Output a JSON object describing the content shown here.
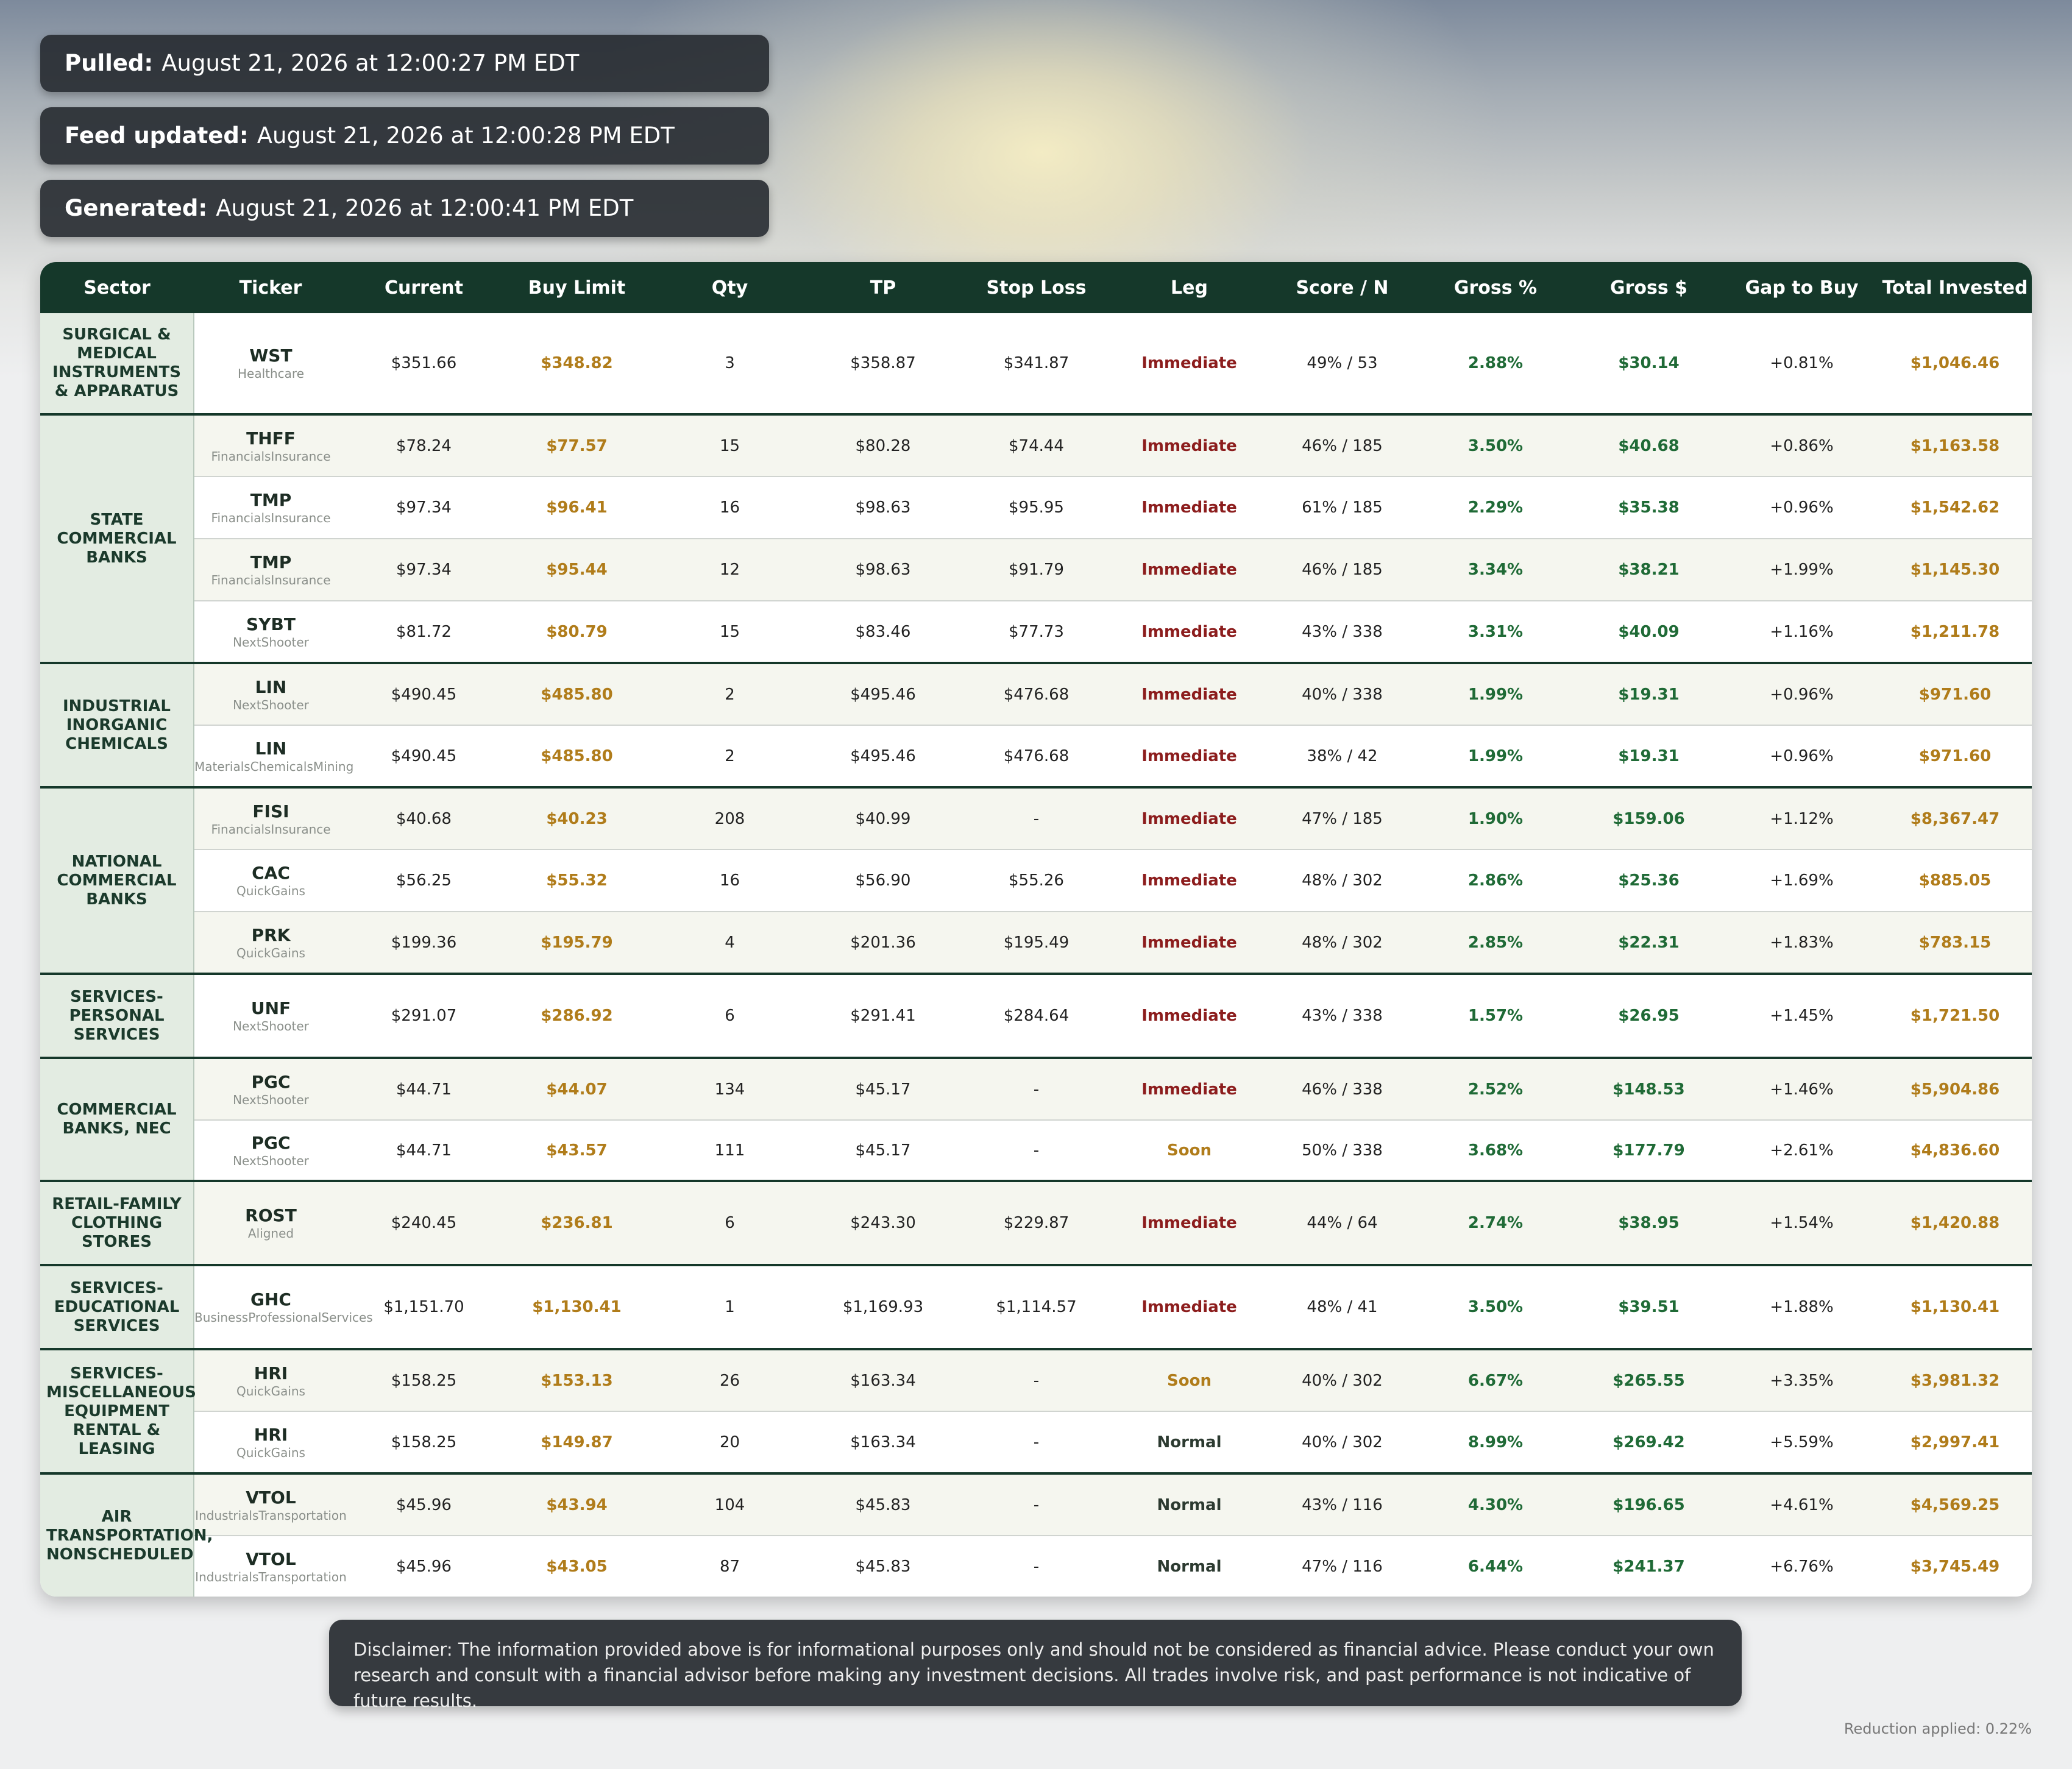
{
  "timestamps": [
    {
      "label": "Pulled:",
      "value": "August 21, 2026 at 12:00:27 PM EDT"
    },
    {
      "label": "Feed updated:",
      "value": "August 21, 2026 at 12:00:28 PM EDT"
    },
    {
      "label": "Generated:",
      "value": "August 21, 2026 at 12:00:41 PM EDT"
    }
  ],
  "table": {
    "headers": [
      "Sector",
      "Ticker",
      "Current",
      "Buy Limit",
      "Qty",
      "TP",
      "Stop Loss",
      "Leg",
      "Score / N",
      "Gross %",
      "Gross $",
      "Gap to Buy",
      "Total Invested"
    ],
    "groups": [
      {
        "sector": "SURGICAL & MEDICAL INSTRUMENTS & APPARATUS",
        "rows": [
          {
            "ticker": "WST",
            "source": "Healthcare",
            "current": "$351.66",
            "buy_limit": "$348.82",
            "qty": "3",
            "tp": "$358.87",
            "stop_loss": "$341.87",
            "leg": "Immediate",
            "score": "49% / 53",
            "gross_pct": "2.88%",
            "gross_usd": "$30.14",
            "gap": "+0.81%",
            "total": "$1,046.46"
          }
        ]
      },
      {
        "sector": "STATE COMMERCIAL BANKS",
        "rows": [
          {
            "ticker": "THFF",
            "source": "FinancialsInsurance",
            "current": "$78.24",
            "buy_limit": "$77.57",
            "qty": "15",
            "tp": "$80.28",
            "stop_loss": "$74.44",
            "leg": "Immediate",
            "score": "46% / 185",
            "gross_pct": "3.50%",
            "gross_usd": "$40.68",
            "gap": "+0.86%",
            "total": "$1,163.58"
          },
          {
            "ticker": "TMP",
            "source": "FinancialsInsurance",
            "current": "$97.34",
            "buy_limit": "$96.41",
            "qty": "16",
            "tp": "$98.63",
            "stop_loss": "$95.95",
            "leg": "Immediate",
            "score": "61% / 185",
            "gross_pct": "2.29%",
            "gross_usd": "$35.38",
            "gap": "+0.96%",
            "total": "$1,542.62"
          },
          {
            "ticker": "TMP",
            "source": "FinancialsInsurance",
            "current": "$97.34",
            "buy_limit": "$95.44",
            "qty": "12",
            "tp": "$98.63",
            "stop_loss": "$91.79",
            "leg": "Immediate",
            "score": "46% / 185",
            "gross_pct": "3.34%",
            "gross_usd": "$38.21",
            "gap": "+1.99%",
            "total": "$1,145.30"
          },
          {
            "ticker": "SYBT",
            "source": "NextShooter",
            "current": "$81.72",
            "buy_limit": "$80.79",
            "qty": "15",
            "tp": "$83.46",
            "stop_loss": "$77.73",
            "leg": "Immediate",
            "score": "43% / 338",
            "gross_pct": "3.31%",
            "gross_usd": "$40.09",
            "gap": "+1.16%",
            "total": "$1,211.78"
          }
        ]
      },
      {
        "sector": "INDUSTRIAL INORGANIC CHEMICALS",
        "rows": [
          {
            "ticker": "LIN",
            "source": "NextShooter",
            "current": "$490.45",
            "buy_limit": "$485.80",
            "qty": "2",
            "tp": "$495.46",
            "stop_loss": "$476.68",
            "leg": "Immediate",
            "score": "40% / 338",
            "gross_pct": "1.99%",
            "gross_usd": "$19.31",
            "gap": "+0.96%",
            "total": "$971.60"
          },
          {
            "ticker": "LIN",
            "source": "MaterialsChemicalsMining",
            "current": "$490.45",
            "buy_limit": "$485.80",
            "qty": "2",
            "tp": "$495.46",
            "stop_loss": "$476.68",
            "leg": "Immediate",
            "score": "38% / 42",
            "gross_pct": "1.99%",
            "gross_usd": "$19.31",
            "gap": "+0.96%",
            "total": "$971.60"
          }
        ]
      },
      {
        "sector": "NATIONAL COMMERCIAL BANKS",
        "rows": [
          {
            "ticker": "FISI",
            "source": "FinancialsInsurance",
            "current": "$40.68",
            "buy_limit": "$40.23",
            "qty": "208",
            "tp": "$40.99",
            "stop_loss": "-",
            "leg": "Immediate",
            "score": "47% / 185",
            "gross_pct": "1.90%",
            "gross_usd": "$159.06",
            "gap": "+1.12%",
            "total": "$8,367.47"
          },
          {
            "ticker": "CAC",
            "source": "QuickGains",
            "current": "$56.25",
            "buy_limit": "$55.32",
            "qty": "16",
            "tp": "$56.90",
            "stop_loss": "$55.26",
            "leg": "Immediate",
            "score": "48% / 302",
            "gross_pct": "2.86%",
            "gross_usd": "$25.36",
            "gap": "+1.69%",
            "total": "$885.05"
          },
          {
            "ticker": "PRK",
            "source": "QuickGains",
            "current": "$199.36",
            "buy_limit": "$195.79",
            "qty": "4",
            "tp": "$201.36",
            "stop_loss": "$195.49",
            "leg": "Immediate",
            "score": "48% / 302",
            "gross_pct": "2.85%",
            "gross_usd": "$22.31",
            "gap": "+1.83%",
            "total": "$783.15"
          }
        ]
      },
      {
        "sector": "SERVICES-PERSONAL SERVICES",
        "rows": [
          {
            "ticker": "UNF",
            "source": "NextShooter",
            "current": "$291.07",
            "buy_limit": "$286.92",
            "qty": "6",
            "tp": "$291.41",
            "stop_loss": "$284.64",
            "leg": "Immediate",
            "score": "43% / 338",
            "gross_pct": "1.57%",
            "gross_usd": "$26.95",
            "gap": "+1.45%",
            "total": "$1,721.50"
          }
        ]
      },
      {
        "sector": "COMMERCIAL BANKS, NEC",
        "rows": [
          {
            "ticker": "PGC",
            "source": "NextShooter",
            "current": "$44.71",
            "buy_limit": "$44.07",
            "qty": "134",
            "tp": "$45.17",
            "stop_loss": "-",
            "leg": "Immediate",
            "score": "46% / 338",
            "gross_pct": "2.52%",
            "gross_usd": "$148.53",
            "gap": "+1.46%",
            "total": "$5,904.86"
          },
          {
            "ticker": "PGC",
            "source": "NextShooter",
            "current": "$44.71",
            "buy_limit": "$43.57",
            "qty": "111",
            "tp": "$45.17",
            "stop_loss": "-",
            "leg": "Soon",
            "score": "50% / 338",
            "gross_pct": "3.68%",
            "gross_usd": "$177.79",
            "gap": "+2.61%",
            "total": "$4,836.60"
          }
        ]
      },
      {
        "sector": "RETAIL-FAMILY CLOTHING STORES",
        "rows": [
          {
            "ticker": "ROST",
            "source": "Aligned",
            "current": "$240.45",
            "buy_limit": "$236.81",
            "qty": "6",
            "tp": "$243.30",
            "stop_loss": "$229.87",
            "leg": "Immediate",
            "score": "44% / 64",
            "gross_pct": "2.74%",
            "gross_usd": "$38.95",
            "gap": "+1.54%",
            "total": "$1,420.88"
          }
        ]
      },
      {
        "sector": "SERVICES-EDUCATIONAL SERVICES",
        "rows": [
          {
            "ticker": "GHC",
            "source": "BusinessProfessionalServices",
            "current": "$1,151.70",
            "buy_limit": "$1,130.41",
            "qty": "1",
            "tp": "$1,169.93",
            "stop_loss": "$1,114.57",
            "leg": "Immediate",
            "score": "48% / 41",
            "gross_pct": "3.50%",
            "gross_usd": "$39.51",
            "gap": "+1.88%",
            "total": "$1,130.41"
          }
        ]
      },
      {
        "sector": "SERVICES-MISCELLANEOUS EQUIPMENT RENTAL & LEASING",
        "rows": [
          {
            "ticker": "HRI",
            "source": "QuickGains",
            "current": "$158.25",
            "buy_limit": "$153.13",
            "qty": "26",
            "tp": "$163.34",
            "stop_loss": "-",
            "leg": "Soon",
            "score": "40% / 302",
            "gross_pct": "6.67%",
            "gross_usd": "$265.55",
            "gap": "+3.35%",
            "total": "$3,981.32"
          },
          {
            "ticker": "HRI",
            "source": "QuickGains",
            "current": "$158.25",
            "buy_limit": "$149.87",
            "qty": "20",
            "tp": "$163.34",
            "stop_loss": "-",
            "leg": "Normal",
            "score": "40% / 302",
            "gross_pct": "8.99%",
            "gross_usd": "$269.42",
            "gap": "+5.59%",
            "total": "$2,997.41"
          }
        ]
      },
      {
        "sector": "AIR TRANSPORTATION, NONSCHEDULED",
        "rows": [
          {
            "ticker": "VTOL",
            "source": "IndustrialsTransportation",
            "current": "$45.96",
            "buy_limit": "$43.94",
            "qty": "104",
            "tp": "$45.83",
            "stop_loss": "-",
            "leg": "Normal",
            "score": "43% / 116",
            "gross_pct": "4.30%",
            "gross_usd": "$196.65",
            "gap": "+4.61%",
            "total": "$4,569.25"
          },
          {
            "ticker": "VTOL",
            "source": "IndustrialsTransportation",
            "current": "$45.96",
            "buy_limit": "$43.05",
            "qty": "87",
            "tp": "$45.83",
            "stop_loss": "-",
            "leg": "Normal",
            "score": "47% / 116",
            "gross_pct": "6.44%",
            "gross_usd": "$241.37",
            "gap": "+6.76%",
            "total": "$3,745.49"
          }
        ]
      }
    ]
  },
  "disclaimer": "Disclaimer: The information provided above is for informational purposes only and should not be considered as financial advice. Please conduct your own research and consult with a financial advisor before making any investment decisions. All trades involve risk, and past performance is not indicative of future results.",
  "reduction": "Reduction applied: 0.22%"
}
